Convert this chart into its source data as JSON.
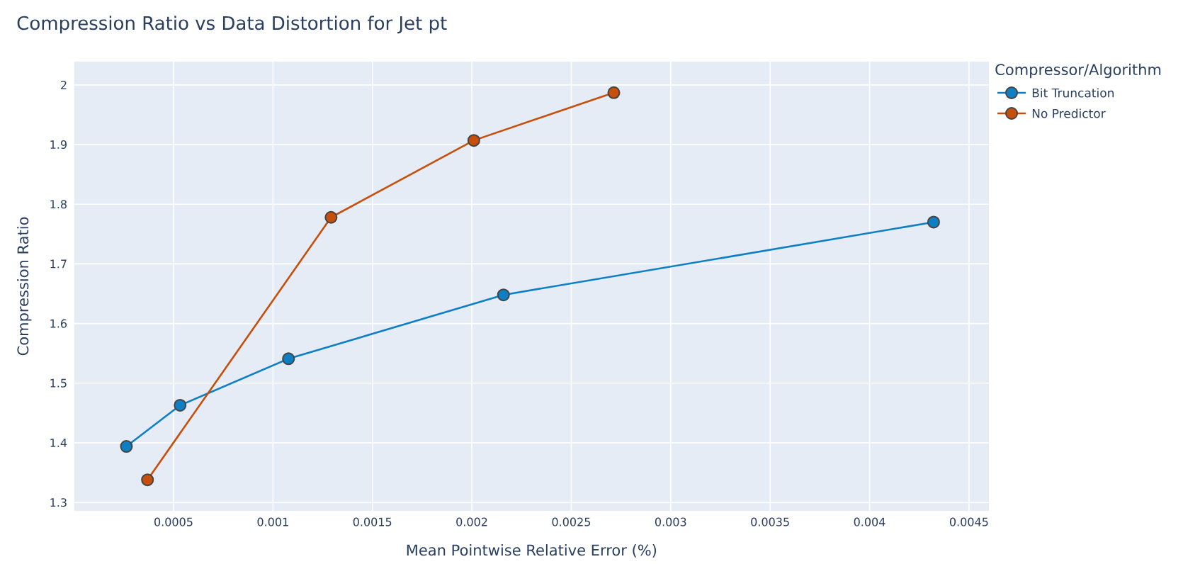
{
  "chart_data": {
    "type": "line",
    "title": "Compression Ratio vs Data Distortion for Jet pt",
    "xlabel": "Mean Pointwise Relative Error (%)",
    "ylabel": "Compression Ratio",
    "legend_title": "Compressor/Algorithm",
    "series": [
      {
        "name": "Bit Truncation",
        "color": "#0f7fc4",
        "x": [
          0.000263,
          0.000533,
          0.001078,
          0.002159,
          0.004322
        ],
        "values": [
          1.394,
          1.463,
          1.541,
          1.648,
          1.77
        ]
      },
      {
        "name": "No Predictor",
        "color": "#c64f0b",
        "x": [
          0.000369,
          0.001292,
          0.00201,
          0.002714
        ],
        "values": [
          1.338,
          1.778,
          1.907,
          1.987
        ]
      }
    ],
    "xlim": [
      0,
      0.0046
    ],
    "ylim": [
      1.286,
      2.039
    ],
    "xticks": [
      0.0005,
      0.001,
      0.0015,
      0.002,
      0.0025,
      0.003,
      0.0035,
      0.004,
      0.0045
    ],
    "yticks": [
      1.3,
      1.4,
      1.5,
      1.6,
      1.7,
      1.8,
      1.9,
      2
    ],
    "grid": true,
    "legend": "top right",
    "marker": "circle",
    "line_style": "solid"
  }
}
